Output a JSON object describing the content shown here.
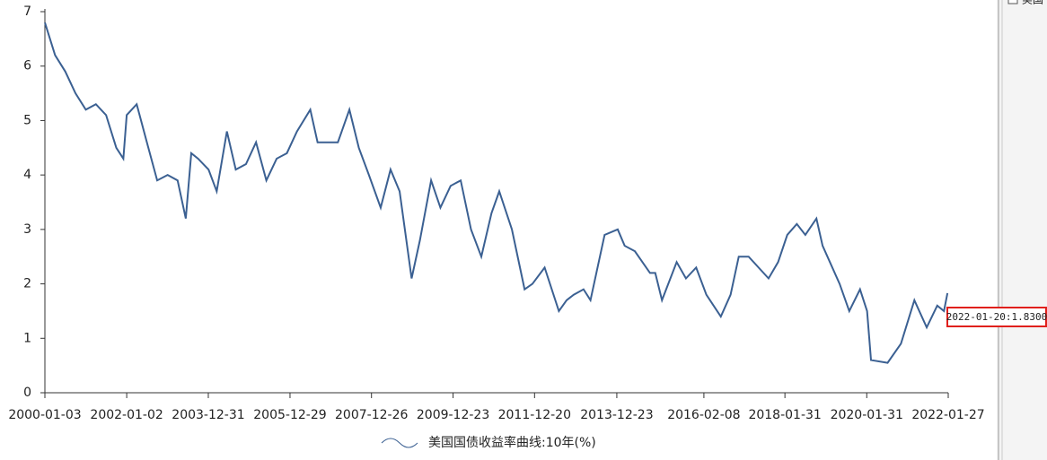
{
  "chart_data": {
    "type": "line",
    "x": [
      "2000-01-03",
      "2000-04-03",
      "2000-07-03",
      "2000-10-02",
      "2001-01-02",
      "2001-04-02",
      "2001-07-02",
      "2001-10-01",
      "2001-12-03",
      "2002-01-02",
      "2002-04-01",
      "2002-07-01",
      "2002-10-01",
      "2003-01-02",
      "2003-04-01",
      "2003-06-13",
      "2003-08-01",
      "2003-10-01",
      "2004-01-02",
      "2004-03-15",
      "2004-06-14",
      "2004-09-01",
      "2004-12-01",
      "2005-03-01",
      "2005-06-01",
      "2005-09-01",
      "2005-12-01",
      "2006-03-01",
      "2006-06-28",
      "2006-09-01",
      "2006-12-01",
      "2007-03-01",
      "2007-06-12",
      "2007-09-04",
      "2007-12-03",
      "2008-03-17",
      "2008-06-13",
      "2008-09-02",
      "2008-12-18",
      "2009-03-02",
      "2009-06-10",
      "2009-09-01",
      "2009-12-01",
      "2010-03-01",
      "2010-06-01",
      "2010-09-01",
      "2010-12-01",
      "2011-02-08",
      "2011-06-01",
      "2011-09-22",
      "2011-12-01",
      "2012-03-19",
      "2012-07-24",
      "2012-10-01",
      "2012-12-03",
      "2013-03-01",
      "2013-05-02",
      "2013-09-05",
      "2013-12-31",
      "2014-03-03",
      "2014-06-02",
      "2014-10-15",
      "2014-12-01",
      "2015-01-30",
      "2015-06-10",
      "2015-09-01",
      "2015-12-01",
      "2016-03-01",
      "2016-07-08",
      "2016-10-03",
      "2016-12-15",
      "2017-03-13",
      "2017-09-07",
      "2017-12-01",
      "2018-02-21",
      "2018-05-17",
      "2018-08-01",
      "2018-11-08",
      "2019-01-02",
      "2019-06-03",
      "2019-08-28",
      "2019-12-02",
      "2020-02-03",
      "2020-03-09",
      "2020-08-04",
      "2020-12-01",
      "2021-03-31",
      "2021-07-19",
      "2021-10-21",
      "2021-12-20",
      "2022-01-20"
    ],
    "series": [
      {
        "name": "美国国债收益率曲线:10年(%)",
        "color": "#3b6092",
        "values": [
          6.8,
          6.2,
          5.9,
          5.5,
          5.2,
          5.3,
          5.1,
          4.5,
          4.3,
          5.1,
          5.3,
          4.6,
          3.9,
          4.0,
          3.9,
          3.2,
          4.4,
          4.3,
          4.1,
          3.7,
          4.8,
          4.1,
          4.2,
          4.6,
          3.9,
          4.3,
          4.4,
          4.8,
          5.2,
          4.6,
          4.6,
          4.6,
          5.2,
          4.5,
          4.0,
          3.4,
          4.1,
          3.7,
          2.1,
          2.8,
          3.9,
          3.4,
          3.8,
          3.9,
          3.0,
          2.5,
          3.3,
          3.7,
          3.0,
          1.9,
          2.0,
          2.3,
          1.5,
          1.7,
          1.8,
          1.9,
          1.7,
          2.9,
          3.0,
          2.7,
          2.6,
          2.2,
          2.2,
          1.7,
          2.4,
          2.1,
          2.3,
          1.8,
          1.4,
          1.8,
          2.5,
          2.5,
          2.1,
          2.4,
          2.9,
          3.1,
          2.9,
          3.2,
          2.7,
          2.0,
          1.5,
          1.9,
          1.5,
          0.6,
          0.55,
          0.9,
          1.7,
          1.2,
          1.6,
          1.5,
          1.83
        ]
      }
    ],
    "xlim": [
      "2000-01-03",
      "2022-01-27"
    ],
    "xticks": [
      "2000-01-03",
      "2002-01-02",
      "2003-12-31",
      "2005-12-29",
      "2007-12-26",
      "2009-12-23",
      "2011-12-20",
      "2013-12-23",
      "2016-02-08",
      "2018-01-31",
      "2020-01-31",
      "2022-01-27"
    ],
    "ylim": [
      0,
      7
    ],
    "yticks": [
      0,
      1,
      2,
      3,
      4,
      5,
      6,
      7
    ],
    "annotation": "2022-01-20:1.8300"
  },
  "side_panel": {
    "item": "美国"
  }
}
